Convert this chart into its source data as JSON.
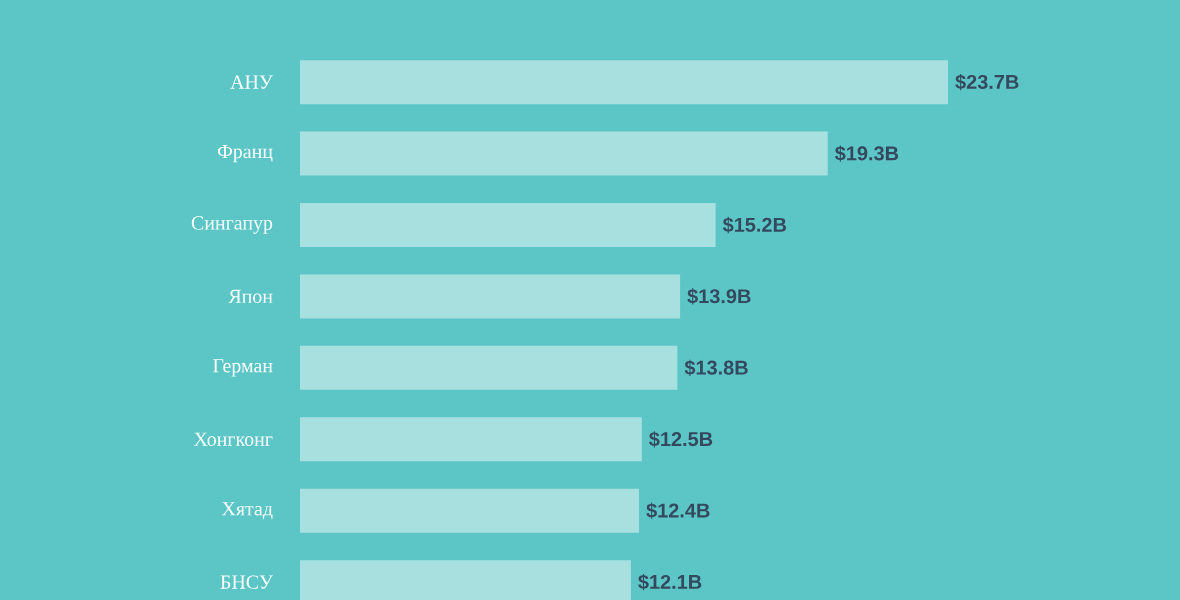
{
  "chart_data": {
    "type": "bar",
    "orientation": "horizontal",
    "categories": [
      "АНУ",
      "Франц",
      "Сингапур",
      "Япон",
      "Герман",
      "Хонгконг",
      "Хятад",
      "БНСУ"
    ],
    "values": [
      23.7,
      19.3,
      15.2,
      13.9,
      13.8,
      12.5,
      12.4,
      12.1
    ],
    "value_labels": [
      "$23.7B",
      "$19.3B",
      "$15.2B",
      "$13.9B",
      "$13.8B",
      "$12.5B",
      "$12.4B",
      "$12.1B"
    ],
    "color": "#a8e0e0"
  }
}
